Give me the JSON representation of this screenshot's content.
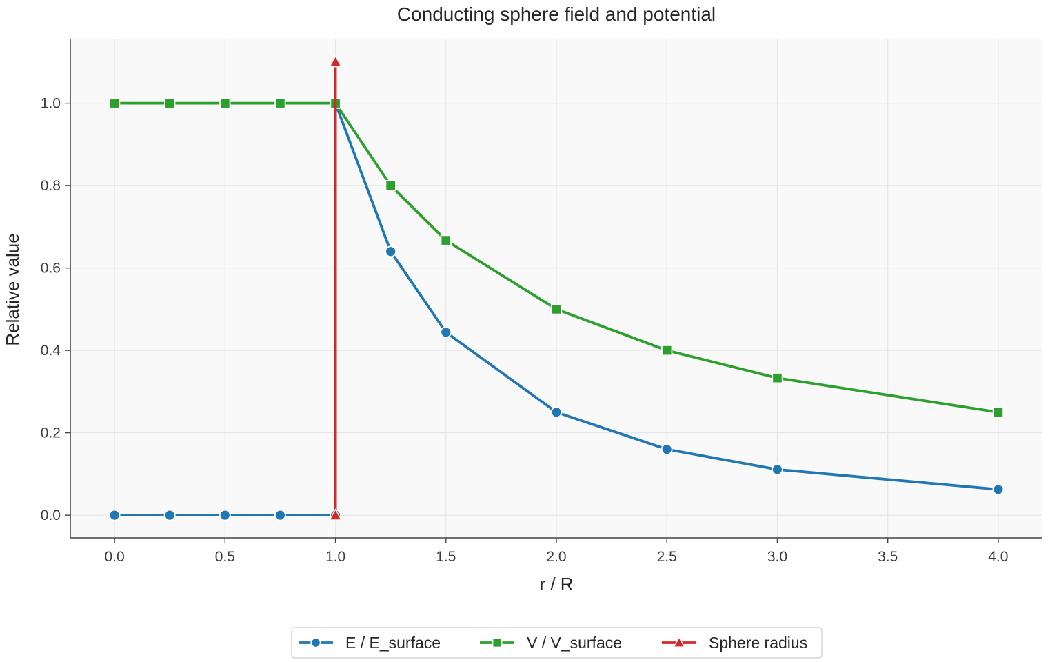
{
  "chart_data": {
    "type": "line",
    "title": "Conducting sphere field and potential",
    "xlabel": "r / R",
    "ylabel": "Relative value",
    "xlim": [
      -0.2,
      4.2
    ],
    "ylim": [
      -0.055,
      1.155
    ],
    "xticks": [
      "0.0",
      "0.5",
      "1.0",
      "1.5",
      "2.0",
      "2.5",
      "3.0",
      "3.5",
      "4.0"
    ],
    "yticks": [
      "0.0",
      "0.2",
      "0.4",
      "0.6",
      "0.8",
      "1.0"
    ],
    "grid": true,
    "legend": "bottom-center",
    "series": [
      {
        "name": "E / E_surface",
        "color": "#1f77b4",
        "marker": "circle",
        "x": [
          0.0,
          0.25,
          0.5,
          0.75,
          1.0,
          1.0,
          1.25,
          1.5,
          2.0,
          2.5,
          3.0,
          4.0
        ],
        "y": [
          0.0,
          0.0,
          0.0,
          0.0,
          0.0,
          1.0,
          0.64,
          0.444,
          0.25,
          0.16,
          0.111,
          0.0625
        ]
      },
      {
        "name": "V / V_surface",
        "color": "#2ca02c",
        "marker": "square",
        "x": [
          0.0,
          0.25,
          0.5,
          0.75,
          1.0,
          1.25,
          1.5,
          2.0,
          2.5,
          3.0,
          4.0
        ],
        "y": [
          1.0,
          1.0,
          1.0,
          1.0,
          1.0,
          0.8,
          0.667,
          0.5,
          0.4,
          0.333,
          0.25
        ]
      },
      {
        "name": "Sphere radius",
        "color": "#d62728",
        "marker": "triangle",
        "x": [
          1.0,
          1.0
        ],
        "y": [
          0.0,
          1.1
        ]
      }
    ]
  }
}
